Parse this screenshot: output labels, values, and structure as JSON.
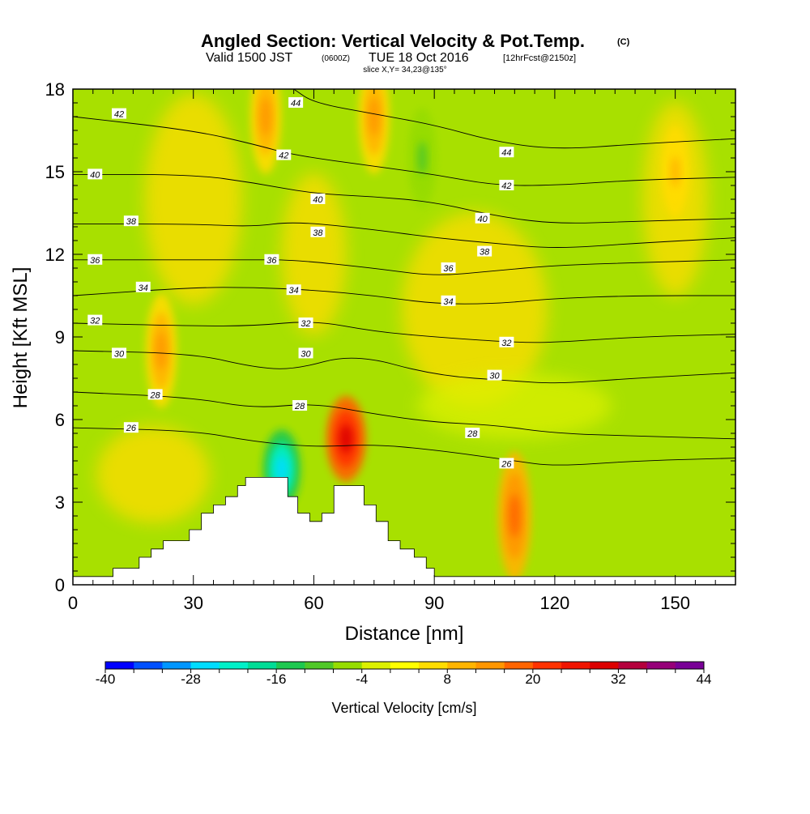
{
  "title": {
    "main": "Angled Section: Vertical Velocity & Pot.Temp.",
    "main_suffix": "(C)",
    "valid_prefix": "Valid 1500 JST",
    "valid_zulu": "(0600Z)",
    "valid_date": "TUE 18 Oct 2016",
    "valid_fcst": "[12hrFcst@2150z]",
    "slice": "slice X,Y= 34,23@135°"
  },
  "chart_data": {
    "type": "heatmap",
    "xlabel": "Distance [nm]",
    "ylabel": "Height [Kft MSL]",
    "xlim": [
      0,
      165
    ],
    "ylim": [
      0,
      18
    ],
    "x_ticks": [
      0,
      30,
      60,
      90,
      120,
      150
    ],
    "y_ticks": [
      0,
      3,
      6,
      9,
      12,
      15,
      18
    ],
    "colorbar": {
      "label": "Vertical Velocity [cm/s]",
      "tick_labels": [
        "-40",
        "-28",
        "-16",
        "-4",
        "8",
        "20",
        "32",
        "44"
      ],
      "colors": [
        "#0000ff",
        "#0050ff",
        "#0096ff",
        "#00dcff",
        "#00f0c8",
        "#00dc96",
        "#1ec850",
        "#50c828",
        "#96dc00",
        "#dcf000",
        "#ffff00",
        "#ffdc00",
        "#ffb400",
        "#ff9600",
        "#ff6400",
        "#ff3200",
        "#f01400",
        "#dc0000",
        "#b4003c",
        "#960078",
        "#780096"
      ]
    },
    "terrain_profile": [
      {
        "x": 0,
        "y": 0.3
      },
      {
        "x": 10,
        "y": 0.6
      },
      {
        "x": 16.5,
        "y": 1.0
      },
      {
        "x": 19.5,
        "y": 1.3
      },
      {
        "x": 22.5,
        "y": 1.6
      },
      {
        "x": 29,
        "y": 2.0
      },
      {
        "x": 32,
        "y": 2.6
      },
      {
        "x": 35,
        "y": 2.9
      },
      {
        "x": 38,
        "y": 3.2
      },
      {
        "x": 41,
        "y": 3.6
      },
      {
        "x": 43,
        "y": 3.9
      },
      {
        "x": 52,
        "y": 3.9
      },
      {
        "x": 53.5,
        "y": 3.2
      },
      {
        "x": 56,
        "y": 2.6
      },
      {
        "x": 59,
        "y": 2.3
      },
      {
        "x": 62,
        "y": 2.6
      },
      {
        "x": 65,
        "y": 3.6
      },
      {
        "x": 71,
        "y": 3.6
      },
      {
        "x": 72.5,
        "y": 2.9
      },
      {
        "x": 75.5,
        "y": 2.3
      },
      {
        "x": 78.5,
        "y": 1.6
      },
      {
        "x": 81.5,
        "y": 1.3
      },
      {
        "x": 85,
        "y": 1.0
      },
      {
        "x": 88,
        "y": 0.6
      },
      {
        "x": 90,
        "y": 0.3
      },
      {
        "x": 165,
        "y": 0.3
      }
    ],
    "velocity_features": [
      {
        "x": 68,
        "y": 5.3,
        "value": 30,
        "note": "updraft core"
      },
      {
        "x": 52,
        "y": 4.2,
        "value": -26,
        "note": "downdraft core"
      },
      {
        "x": 48,
        "y": 17.0,
        "value": 14
      },
      {
        "x": 75,
        "y": 17.0,
        "value": 14
      },
      {
        "x": 87,
        "y": 15.5,
        "value": -10
      },
      {
        "x": 22,
        "y": 8.5,
        "value": 14
      },
      {
        "x": 110,
        "y": 2.5,
        "value": 18
      },
      {
        "x": 150,
        "y": 15.0,
        "value": 8
      }
    ],
    "pot_temp_contours": [
      {
        "value": 26,
        "points": [
          [
            0,
            5.7
          ],
          [
            30,
            5.6
          ],
          [
            45,
            5.2
          ],
          [
            60,
            5.0
          ],
          [
            75,
            5.1
          ],
          [
            90,
            4.9
          ],
          [
            110,
            4.5
          ],
          [
            120,
            4.3
          ],
          [
            140,
            4.5
          ],
          [
            165,
            4.6
          ]
        ]
      },
      {
        "value": 28,
        "points": [
          [
            0,
            7.0
          ],
          [
            30,
            6.8
          ],
          [
            45,
            6.4
          ],
          [
            60,
            6.6
          ],
          [
            75,
            6.2
          ],
          [
            90,
            5.9
          ],
          [
            105,
            5.8
          ],
          [
            120,
            5.5
          ],
          [
            140,
            5.4
          ],
          [
            165,
            5.3
          ]
        ]
      },
      {
        "value": 30,
        "points": [
          [
            0,
            8.5
          ],
          [
            30,
            8.4
          ],
          [
            45,
            7.9
          ],
          [
            55,
            7.8
          ],
          [
            70,
            8.4
          ],
          [
            90,
            7.6
          ],
          [
            110,
            7.4
          ],
          [
            120,
            7.3
          ],
          [
            140,
            7.5
          ],
          [
            165,
            7.7
          ]
        ]
      },
      {
        "value": 32,
        "points": [
          [
            0,
            9.5
          ],
          [
            30,
            9.4
          ],
          [
            45,
            9.4
          ],
          [
            60,
            9.6
          ],
          [
            75,
            9.2
          ],
          [
            90,
            9.0
          ],
          [
            110,
            8.8
          ],
          [
            120,
            8.8
          ],
          [
            140,
            9.0
          ],
          [
            165,
            9.1
          ]
        ]
      },
      {
        "value": 34,
        "points": [
          [
            0,
            10.5
          ],
          [
            30,
            10.8
          ],
          [
            45,
            10.8
          ],
          [
            60,
            10.7
          ],
          [
            75,
            10.5
          ],
          [
            90,
            10.2
          ],
          [
            105,
            10.2
          ],
          [
            120,
            10.4
          ],
          [
            140,
            10.5
          ],
          [
            165,
            10.5
          ]
        ]
      },
      {
        "value": 36,
        "points": [
          [
            0,
            11.8
          ],
          [
            30,
            11.8
          ],
          [
            45,
            11.8
          ],
          [
            55,
            11.8
          ],
          [
            75,
            11.5
          ],
          [
            90,
            11.2
          ],
          [
            105,
            11.4
          ],
          [
            120,
            11.6
          ],
          [
            140,
            11.7
          ],
          [
            165,
            11.8
          ]
        ]
      },
      {
        "value": 38,
        "points": [
          [
            0,
            13.1
          ],
          [
            30,
            13.1
          ],
          [
            45,
            13.0
          ],
          [
            55,
            13.2
          ],
          [
            75,
            12.9
          ],
          [
            90,
            12.6
          ],
          [
            105,
            12.4
          ],
          [
            120,
            12.2
          ],
          [
            140,
            12.4
          ],
          [
            165,
            12.6
          ]
        ]
      },
      {
        "value": 40,
        "points": [
          [
            0,
            14.9
          ],
          [
            30,
            14.9
          ],
          [
            45,
            14.6
          ],
          [
            60,
            14.2
          ],
          [
            75,
            14.1
          ],
          [
            90,
            13.9
          ],
          [
            105,
            13.4
          ],
          [
            120,
            13.1
          ],
          [
            140,
            13.2
          ],
          [
            165,
            13.3
          ]
        ]
      },
      {
        "value": 42,
        "points": [
          [
            0,
            17.0
          ],
          [
            30,
            16.5
          ],
          [
            45,
            16.0
          ],
          [
            55,
            15.6
          ],
          [
            75,
            15.2
          ],
          [
            90,
            14.9
          ],
          [
            105,
            14.5
          ],
          [
            120,
            14.5
          ],
          [
            140,
            14.7
          ],
          [
            165,
            14.8
          ]
        ]
      },
      {
        "value": 44,
        "points": [
          [
            55,
            18.0
          ],
          [
            60,
            17.5
          ],
          [
            75,
            17.1
          ],
          [
            90,
            16.7
          ],
          [
            105,
            16.1
          ],
          [
            120,
            15.8
          ],
          [
            140,
            16.0
          ],
          [
            165,
            16.2
          ]
        ]
      }
    ],
    "contour_labels": [
      {
        "text": "42",
        "x": 11.5,
        "y": 17.1
      },
      {
        "text": "44",
        "x": 55.5,
        "y": 17.5
      },
      {
        "text": "42",
        "x": 52.5,
        "y": 15.6
      },
      {
        "text": "44",
        "x": 108,
        "y": 15.7
      },
      {
        "text": "40",
        "x": 5.5,
        "y": 14.9
      },
      {
        "text": "40",
        "x": 61,
        "y": 14.0
      },
      {
        "text": "42",
        "x": 108,
        "y": 14.5
      },
      {
        "text": "38",
        "x": 14.5,
        "y": 13.2
      },
      {
        "text": "38",
        "x": 61,
        "y": 12.8
      },
      {
        "text": "40",
        "x": 102,
        "y": 13.3
      },
      {
        "text": "38",
        "x": 102.5,
        "y": 12.1
      },
      {
        "text": "36",
        "x": 5.5,
        "y": 11.8
      },
      {
        "text": "36",
        "x": 49.5,
        "y": 11.8
      },
      {
        "text": "36",
        "x": 93.5,
        "y": 11.5
      },
      {
        "text": "34",
        "x": 17.5,
        "y": 10.8
      },
      {
        "text": "34",
        "x": 55,
        "y": 10.7
      },
      {
        "text": "34",
        "x": 93.5,
        "y": 10.3
      },
      {
        "text": "32",
        "x": 5.5,
        "y": 9.6
      },
      {
        "text": "32",
        "x": 58,
        "y": 9.5
      },
      {
        "text": "32",
        "x": 108,
        "y": 8.8
      },
      {
        "text": "30",
        "x": 11.5,
        "y": 8.4
      },
      {
        "text": "30",
        "x": 58,
        "y": 8.4
      },
      {
        "text": "30",
        "x": 105,
        "y": 7.6
      },
      {
        "text": "28",
        "x": 20.5,
        "y": 6.9
      },
      {
        "text": "28",
        "x": 56.5,
        "y": 6.5
      },
      {
        "text": "28",
        "x": 99.5,
        "y": 5.5
      },
      {
        "text": "26",
        "x": 14.5,
        "y": 5.7
      },
      {
        "text": "26",
        "x": 108,
        "y": 4.4
      }
    ]
  }
}
